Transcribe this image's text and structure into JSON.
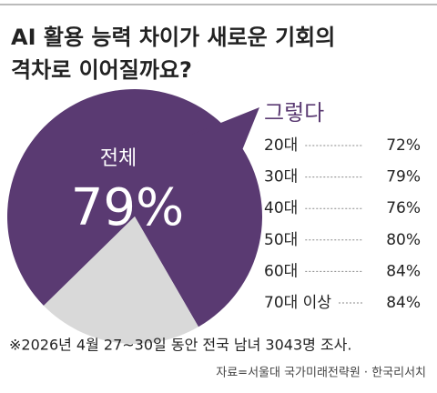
{
  "chart_data": [
    {
      "type": "pie",
      "title": "AI 활용 능력 차이가 새로운 기회의",
      "subtitle": "격차로 이어질까요?",
      "label": "전체",
      "values": [
        79,
        21
      ],
      "value_labels": [
        "79%",
        null
      ],
      "colors": [
        "#5a3a72",
        "#d9d9d9"
      ]
    },
    {
      "type": "list",
      "legend_title": "그렇다",
      "color": "#5a3a72",
      "categories": [
        "20대",
        "30대",
        "40대",
        "50대",
        "60대",
        "70대 이상"
      ],
      "values": [
        72,
        79,
        76,
        80,
        84,
        84
      ],
      "value_labels": [
        "72%",
        "79%",
        "76%",
        "80%",
        "84%",
        "84%"
      ]
    }
  ],
  "note": "※2026년 4월 27~30일 동안 전국 남녀 3043명 조사.",
  "source": "자료=서울대 국가미래전략원 · 한국리서치"
}
